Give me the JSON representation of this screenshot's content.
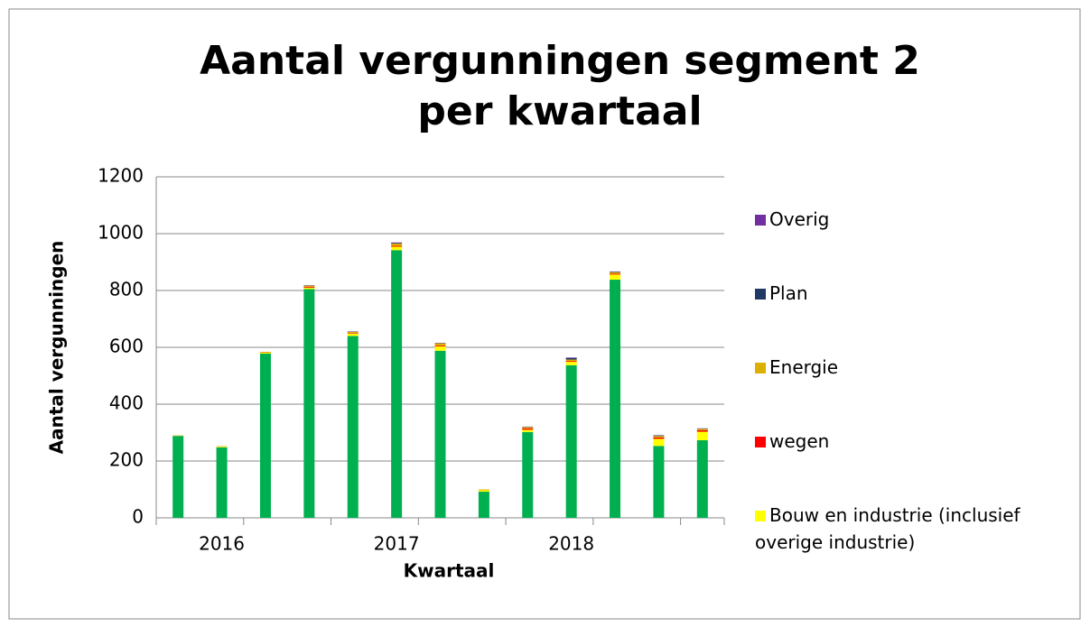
{
  "chart_data": {
    "type": "stacked_bar",
    "title": "Aantal vergunningen segment 2 per kwartaal",
    "x_label": "Kwartaal",
    "y_label": "Aantal vergunningen",
    "categories": [
      null,
      "2016",
      null,
      null,
      null,
      "2017",
      null,
      null,
      null,
      "2018",
      null,
      null,
      null
    ],
    "series": [
      {
        "color": "#00b050",
        "values": [
          288,
          248,
          578,
          805,
          640,
          942,
          588,
          92,
          302,
          537,
          838,
          253,
          273
        ]
      },
      {
        "name": "Bouw en industrie (inclusief overige industrie)",
        "color": "#ffff00",
        "values": [
          0,
          2,
          3,
          5,
          8,
          12,
          15,
          5,
          8,
          12,
          18,
          25,
          30
        ]
      },
      {
        "name": "wegen",
        "color": "#ff0000",
        "values": [
          0,
          0,
          1,
          3,
          2,
          3,
          3,
          0,
          5,
          3,
          3,
          5,
          5
        ]
      },
      {
        "name": "Energie",
        "color": "#dcb000",
        "values": [
          2,
          2,
          2,
          4,
          4,
          8,
          8,
          3,
          4,
          5,
          5,
          5,
          5
        ]
      },
      {
        "name": "Plan",
        "color": "#1f3864",
        "values": [
          0,
          0,
          0,
          1,
          1,
          2,
          1,
          0,
          1,
          5,
          2,
          2,
          1
        ]
      },
      {
        "name": "Overig",
        "color": "#7030a0",
        "values": [
          0,
          0,
          0,
          1,
          1,
          2,
          1,
          0,
          1,
          2,
          1,
          1,
          1
        ]
      }
    ],
    "ylim": [
      0,
      1200
    ],
    "yticks": [
      0,
      200,
      400,
      600,
      800,
      1000,
      1200
    ],
    "grid": true,
    "legend": "right"
  }
}
